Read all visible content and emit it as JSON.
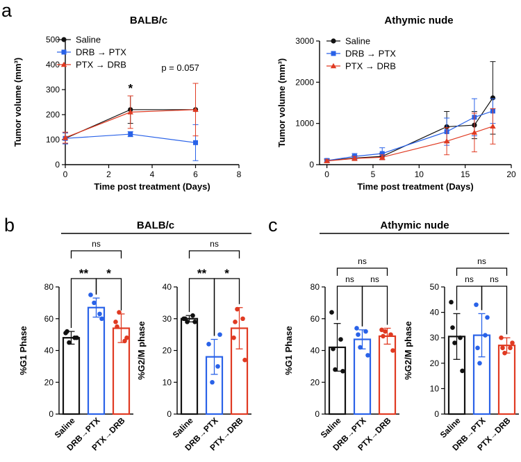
{
  "panel_labels": [
    "a",
    "b",
    "c"
  ],
  "colors": {
    "black": "#111111",
    "blue": "#2962e8",
    "red": "#e03a22"
  },
  "chart_data": [
    {
      "id": "a-balbc",
      "type": "line",
      "title": "BALB/c",
      "xlabel": "Time post treatment (Days)",
      "ylabel": "Tumor volume (mm³)",
      "xlim": [
        0,
        8
      ],
      "ylim": [
        0,
        500
      ],
      "xticks": [
        0,
        2,
        4,
        6,
        8
      ],
      "yticks": [
        0,
        100,
        200,
        300,
        400,
        500
      ],
      "x": [
        0,
        3,
        6
      ],
      "series": [
        {
          "name": "Saline",
          "color": "#111111",
          "marker": "circle",
          "values": [
            105,
            220,
            220
          ],
          "err": [
            22,
            55,
            0
          ]
        },
        {
          "name": "DRB → PTX",
          "color": "#2962e8",
          "marker": "square",
          "values": [
            105,
            122,
            88
          ],
          "err": [
            22,
            10,
            72
          ]
        },
        {
          "name": "PTX → DRB",
          "color": "#e03a22",
          "marker": "triangle",
          "values": [
            108,
            210,
            220
          ],
          "err": [
            22,
            65,
            105
          ]
        }
      ],
      "annotations": [
        {
          "text": "*",
          "x": 3,
          "y": 290
        },
        {
          "text": "p = 0.057",
          "x": 5.3,
          "y": 375
        }
      ]
    },
    {
      "id": "a-athymic",
      "type": "line",
      "title": "Athymic nude",
      "xlabel": "Time post treatment (Days)",
      "ylabel": "Tumor volume (mm³)",
      "xlim": [
        -0.8,
        20
      ],
      "ylim": [
        0,
        3000
      ],
      "xticks": [
        0,
        5,
        10,
        15,
        20
      ],
      "yticks": [
        0,
        1000,
        2000,
        3000
      ],
      "x": [
        0,
        3,
        6,
        13,
        16,
        18
      ],
      "series": [
        {
          "name": "Saline",
          "color": "#111111",
          "marker": "circle",
          "values": [
            100,
            160,
            200,
            920,
            960,
            1620
          ],
          "err": [
            40,
            60,
            80,
            370,
            330,
            880
          ]
        },
        {
          "name": "DRB → PTX",
          "color": "#2962e8",
          "marker": "square",
          "values": [
            100,
            200,
            270,
            800,
            1150,
            1300
          ],
          "err": [
            40,
            70,
            140,
            330,
            450,
            300
          ]
        },
        {
          "name": "PTX → DRB",
          "color": "#e03a22",
          "marker": "triangle",
          "values": [
            90,
            150,
            180,
            570,
            780,
            930
          ],
          "err": [
            30,
            50,
            60,
            330,
            470,
            430
          ]
        }
      ],
      "annotations": []
    },
    {
      "id": "b-g1",
      "type": "bar",
      "group_title": "BALB/c",
      "ylabel": "%G1 Phase",
      "ylim": [
        0,
        80
      ],
      "yticks": [
        0,
        20,
        40,
        60,
        80
      ],
      "categories": [
        "Saline",
        "DRB→PTX",
        "PTX→DRB"
      ],
      "colors": [
        "#111111",
        "#2962e8",
        "#e03a22"
      ],
      "values": [
        48,
        67,
        54
      ],
      "err": [
        4,
        6,
        9
      ],
      "points": [
        [
          51,
          48,
          45,
          48,
          52
        ],
        [
          75,
          63,
          70,
          60
        ],
        [
          58,
          46,
          64,
          48,
          55
        ]
      ],
      "comparisons": [
        {
          "from": 0,
          "to": 1,
          "label": "**"
        },
        {
          "from": 1,
          "to": 2,
          "label": "*"
        },
        {
          "from": 0,
          "to": 2,
          "label": "ns"
        }
      ]
    },
    {
      "id": "b-g2m",
      "type": "bar",
      "ylabel": "%G2/M phase",
      "ylim": [
        0,
        40
      ],
      "yticks": [
        0,
        10,
        20,
        30,
        40
      ],
      "categories": [
        "Saline",
        "DRB→PTX",
        "PTX→DRB"
      ],
      "colors": [
        "#111111",
        "#2962e8",
        "#e03a22"
      ],
      "values": [
        30,
        18,
        27
      ],
      "err": [
        1,
        5.5,
        6.5
      ],
      "points": [
        [
          30,
          31,
          29,
          29,
          30
        ],
        [
          22,
          15,
          10,
          25
        ],
        [
          24,
          30,
          33,
          17,
          29
        ]
      ],
      "comparisons": [
        {
          "from": 0,
          "to": 1,
          "label": "**"
        },
        {
          "from": 1,
          "to": 2,
          "label": "*"
        },
        {
          "from": 0,
          "to": 2,
          "label": "ns"
        }
      ]
    },
    {
      "id": "c-g1",
      "type": "bar",
      "group_title": "Athymic nude",
      "ylabel": "%G1 Phase",
      "ylim": [
        0,
        80
      ],
      "yticks": [
        0,
        20,
        40,
        60,
        80
      ],
      "categories": [
        "Saline",
        "DRB→PTX",
        "PTX→DRB"
      ],
      "colors": [
        "#111111",
        "#2962e8",
        "#e03a22"
      ],
      "values": [
        42,
        47,
        49
      ],
      "err": [
        15,
        6,
        5
      ],
      "points": [
        [
          64,
          47,
          28,
          27,
          41
        ],
        [
          54,
          52,
          42,
          37,
          50
        ],
        [
          53,
          50,
          52,
          40,
          49
        ]
      ],
      "comparisons": [
        {
          "from": 0,
          "to": 1,
          "label": "ns"
        },
        {
          "from": 1,
          "to": 2,
          "label": "ns"
        },
        {
          "from": 0,
          "to": 2,
          "label": "ns"
        }
      ]
    },
    {
      "id": "c-g2m",
      "type": "bar",
      "ylabel": "%G2/M phase",
      "ylim": [
        0,
        50
      ],
      "yticks": [
        0,
        10,
        20,
        30,
        40,
        50
      ],
      "categories": [
        "Saline",
        "DRB→PTX",
        "PTX→DRB"
      ],
      "colors": [
        "#111111",
        "#2962e8",
        "#e03a22"
      ],
      "values": [
        30.5,
        31,
        27
      ],
      "err": [
        9,
        8.5,
        3
      ],
      "points": [
        [
          44,
          30,
          28,
          17,
          34
        ],
        [
          43,
          31,
          20,
          38,
          26
        ],
        [
          30,
          26,
          24,
          28,
          26
        ]
      ],
      "comparisons": [
        {
          "from": 0,
          "to": 1,
          "label": "ns"
        },
        {
          "from": 1,
          "to": 2,
          "label": "ns"
        },
        {
          "from": 0,
          "to": 2,
          "label": "ns"
        }
      ]
    }
  ]
}
